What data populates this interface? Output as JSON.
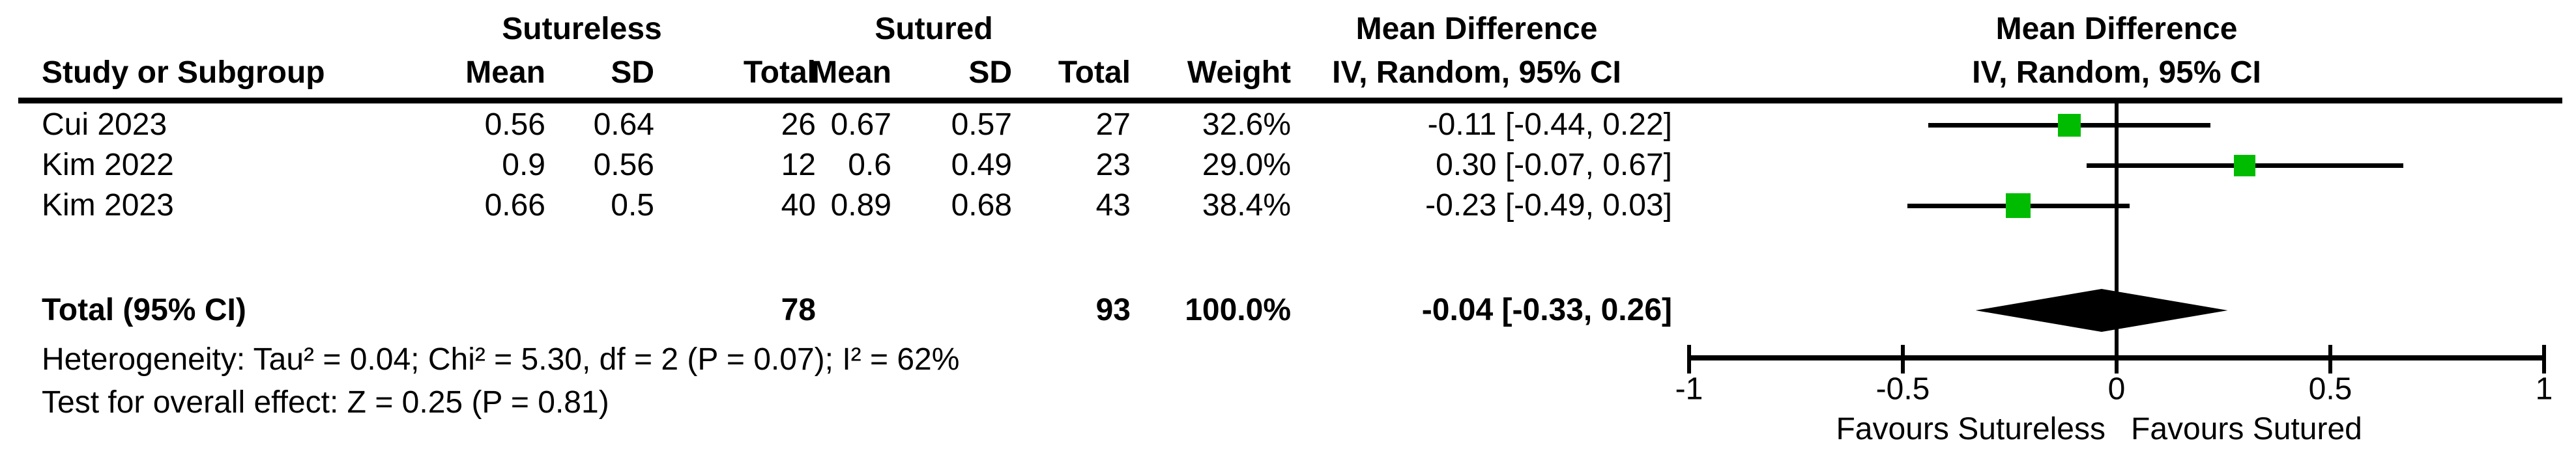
{
  "headers": {
    "group_sutureless": "Sutureless",
    "group_sutured": "Sutured",
    "group_md_text": "Mean Difference",
    "group_md_plot": "Mean Difference",
    "study": "Study or Subgroup",
    "mean1": "Mean",
    "sd1": "SD",
    "total1": "Total",
    "mean2": "Mean",
    "sd2": "SD",
    "total2": "Total",
    "weight": "Weight",
    "iv_text": "IV, Random, 95% CI",
    "iv_plot": "IV, Random, 95% CI"
  },
  "rows": [
    {
      "study": "Cui 2023",
      "e_mean": "0.56",
      "e_sd": "0.64",
      "e_total": "26",
      "c_mean": "0.67",
      "c_sd": "0.57",
      "c_total": "27",
      "weight": "32.6%",
      "ci": "-0.11 [-0.44, 0.22]"
    },
    {
      "study": "Kim 2022",
      "e_mean": "0.9",
      "e_sd": "0.56",
      "e_total": "12",
      "c_mean": "0.6",
      "c_sd": "0.49",
      "c_total": "23",
      "weight": "29.0%",
      "ci": "0.30 [-0.07, 0.67]"
    },
    {
      "study": "Kim 2023",
      "e_mean": "0.66",
      "e_sd": "0.5",
      "e_total": "40",
      "c_mean": "0.89",
      "c_sd": "0.68",
      "c_total": "43",
      "weight": "38.4%",
      "ci": "-0.23 [-0.49, 0.03]"
    }
  ],
  "total_row": {
    "label": "Total (95% CI)",
    "e_total": "78",
    "c_total": "93",
    "weight": "100.0%",
    "ci": "-0.04 [-0.33, 0.26]"
  },
  "footnotes": {
    "heterogeneity": "Heterogeneity: Tau² = 0.04; Chi² = 5.30, df = 2 (P = 0.07); I² = 62%",
    "overall_effect": "Test for overall effect: Z = 0.25 (P = 0.81)"
  },
  "axis": {
    "favours_left": "Favours Sutureless",
    "favours_right": "Favours Sutured"
  },
  "colors": {
    "marker": "#00BC00",
    "diamond": "#000000",
    "line": "#000000"
  },
  "chart_data": {
    "type": "scatter",
    "subtype": "forest-plot",
    "effect_measure": "Mean Difference, IV, Random, 95% CI",
    "studies": [
      {
        "name": "Cui 2023",
        "md": -0.11,
        "ci_low": -0.44,
        "ci_high": 0.22,
        "weight_pct": 32.6
      },
      {
        "name": "Kim 2022",
        "md": 0.3,
        "ci_low": -0.07,
        "ci_high": 0.67,
        "weight_pct": 29.0
      },
      {
        "name": "Kim 2023",
        "md": -0.23,
        "ci_low": -0.49,
        "ci_high": 0.03,
        "weight_pct": 38.4
      }
    ],
    "total": {
      "md": -0.04,
      "ci_low": -0.33,
      "ci_high": 0.26
    },
    "xlim": [
      -1,
      1
    ],
    "ticks": [
      -1,
      -0.5,
      0,
      0.5,
      1
    ],
    "tick_labels": [
      "-1",
      "-0.5",
      "0",
      "0.5",
      "1"
    ],
    "x_axis_left_label": "Favours Sutureless",
    "x_axis_right_label": "Favours Sutured",
    "grid": false,
    "legend": false
  }
}
